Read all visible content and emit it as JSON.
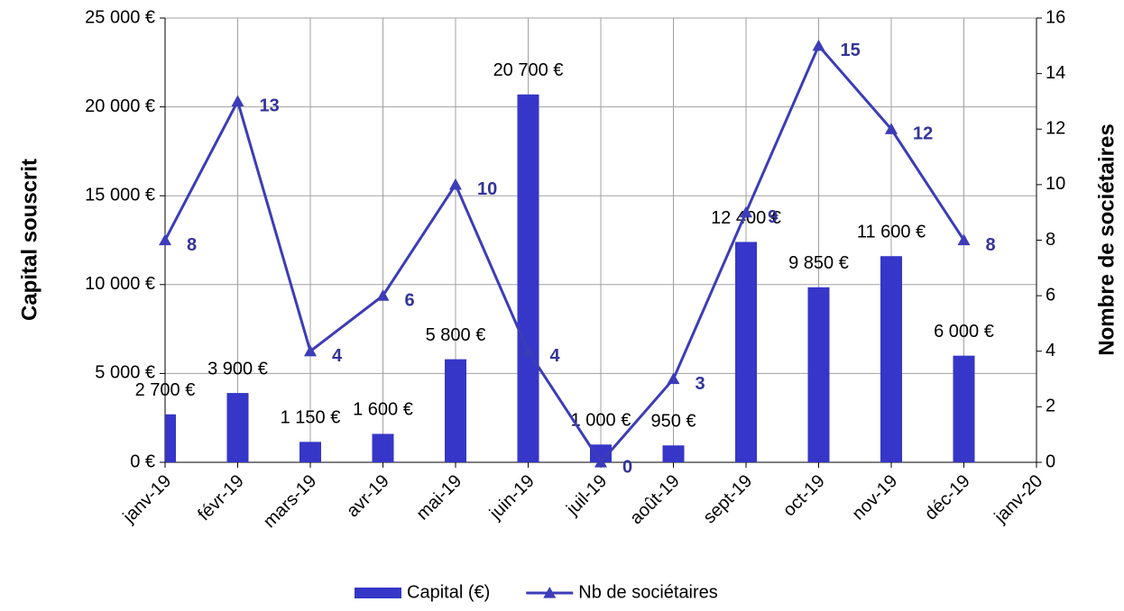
{
  "chart_data": {
    "type": "bar-line",
    "y_label": "Capital souscrit",
    "y2_label": "Nombre de sociétaires",
    "categories": [
      "janv-19",
      "févr-19",
      "mars-19",
      "avr-19",
      "mai-19",
      "juin-19",
      "juil-19",
      "août-19",
      "sept-19",
      "oct-19",
      "nov-19",
      "déc-19",
      "janv-20"
    ],
    "series": [
      {
        "name": "Capital (€)",
        "type": "bar",
        "color": "#3636c8",
        "values": [
          2700,
          3900,
          1150,
          1600,
          5800,
          20700,
          1000,
          950,
          12400,
          9850,
          11600,
          6000,
          null
        ],
        "value_labels": [
          "2 700 €",
          "3 900 €",
          "1 150 €",
          "1 600 €",
          "5 800 €",
          "20 700 €",
          "1 000 €",
          "950 €",
          "12 400 €",
          "9 850 €",
          "11 600 €",
          "6 000 €",
          null
        ]
      },
      {
        "name": "Nb de sociétaires",
        "type": "line",
        "axis": "y2",
        "color": "#3c3cb8",
        "label_color": "#333399",
        "values": [
          8,
          13,
          4,
          6,
          10,
          4,
          0,
          3,
          9,
          15,
          12,
          8,
          null
        ]
      }
    ],
    "ylim": [
      0,
      25000
    ],
    "yticks": [
      {
        "value": 0,
        "label": "0 €"
      },
      {
        "value": 5000,
        "label": "5 000 €"
      },
      {
        "value": 10000,
        "label": "10 000 €"
      },
      {
        "value": 15000,
        "label": "15 000 €"
      },
      {
        "value": 20000,
        "label": "20 000 €"
      },
      {
        "value": 25000,
        "label": "25 000 €"
      }
    ],
    "y2lim": [
      0,
      16
    ],
    "y2ticks": [
      0,
      2,
      4,
      6,
      8,
      10,
      12,
      14,
      16
    ],
    "grid": true,
    "legend": "bottom"
  }
}
